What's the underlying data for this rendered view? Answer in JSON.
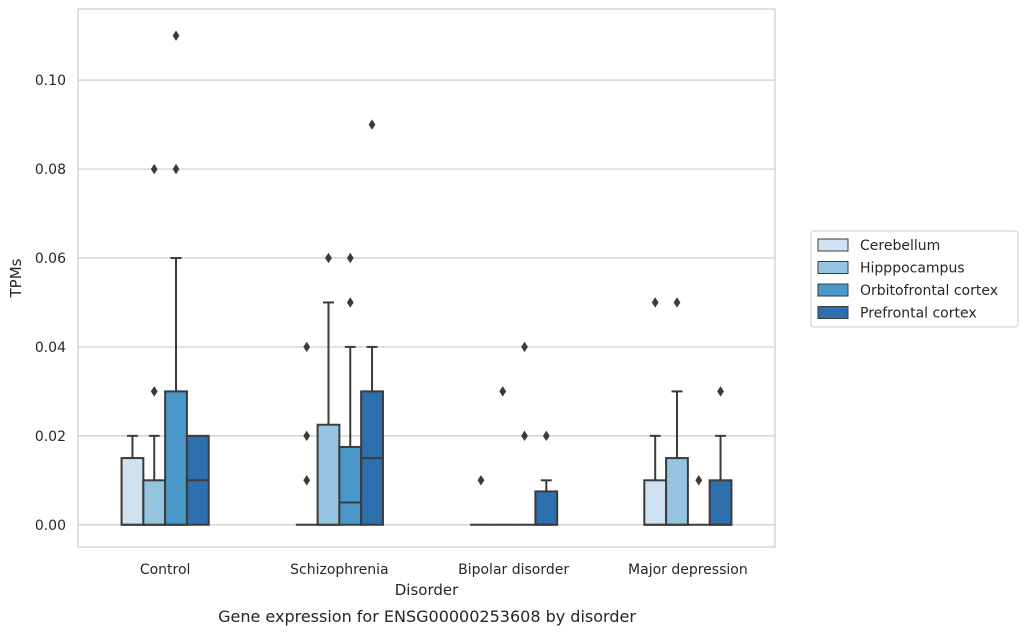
{
  "caption": "Gene expression for ENSG00000253608 by disorder",
  "chart_data": {
    "type": "box",
    "title": "",
    "xlabel": "Disorder",
    "ylabel": "TPMs",
    "ylim": [
      -0.005,
      0.116
    ],
    "yticks": [
      0.0,
      0.02,
      0.04,
      0.06,
      0.08,
      0.1
    ],
    "ytick_labels": [
      "0.00",
      "0.02",
      "0.04",
      "0.06",
      "0.08",
      "0.10"
    ],
    "grid": true,
    "legend_position": "right",
    "categories": [
      "Control",
      "Schizophrenia",
      "Bipolar disorder",
      "Major depression"
    ],
    "series": [
      {
        "name": "Cerebellum",
        "color": "#d0e1f2",
        "boxes": [
          {
            "min": 0.0,
            "q1": 0.0,
            "median": 0.0,
            "q3": 0.015,
            "max": 0.02,
            "outliers": []
          },
          {
            "min": 0.0,
            "q1": 0.0,
            "median": 0.0,
            "q3": 0.0,
            "max": 0.0,
            "outliers": [
              0.01,
              0.02,
              0.04
            ]
          },
          {
            "min": 0.0,
            "q1": 0.0,
            "median": 0.0,
            "q3": 0.0,
            "max": 0.0,
            "outliers": [
              0.01
            ]
          },
          {
            "min": 0.0,
            "q1": 0.0,
            "median": 0.0,
            "q3": 0.01,
            "max": 0.02,
            "outliers": [
              0.05
            ]
          }
        ]
      },
      {
        "name": "Hipppocampus",
        "color": "#94c4df",
        "boxes": [
          {
            "min": 0.0,
            "q1": 0.0,
            "median": 0.0,
            "q3": 0.01,
            "max": 0.02,
            "outliers": [
              0.03,
              0.08
            ]
          },
          {
            "min": 0.0,
            "q1": 0.0,
            "median": 0.0,
            "q3": 0.0225,
            "max": 0.05,
            "outliers": [
              0.06
            ]
          },
          {
            "min": 0.0,
            "q1": 0.0,
            "median": 0.0,
            "q3": 0.0,
            "max": 0.0,
            "outliers": [
              0.03
            ]
          },
          {
            "min": 0.0,
            "q1": 0.0,
            "median": 0.0,
            "q3": 0.015,
            "max": 0.03,
            "outliers": [
              0.05
            ]
          }
        ]
      },
      {
        "name": "Orbitofrontal cortex",
        "color": "#4a98c9",
        "boxes": [
          {
            "min": 0.0,
            "q1": 0.0,
            "median": 0.0,
            "q3": 0.03,
            "max": 0.06,
            "outliers": [
              0.08,
              0.11
            ]
          },
          {
            "min": 0.0,
            "q1": 0.0,
            "median": 0.005,
            "q3": 0.0175,
            "max": 0.04,
            "outliers": [
              0.05,
              0.06
            ]
          },
          {
            "min": 0.0,
            "q1": 0.0,
            "median": 0.0,
            "q3": 0.0,
            "max": 0.0,
            "outliers": [
              0.02,
              0.04
            ]
          },
          {
            "min": 0.0,
            "q1": 0.0,
            "median": 0.0,
            "q3": 0.0,
            "max": 0.0,
            "outliers": [
              0.01
            ]
          }
        ]
      },
      {
        "name": "Prefrontal cortex",
        "color": "#2e6fae",
        "boxes": [
          {
            "min": 0.0,
            "q1": 0.0,
            "median": 0.01,
            "q3": 0.02,
            "max": 0.02,
            "outliers": []
          },
          {
            "min": 0.0,
            "q1": 0.0,
            "median": 0.015,
            "q3": 0.03,
            "max": 0.04,
            "outliers": [
              0.09
            ]
          },
          {
            "min": 0.0,
            "q1": 0.0,
            "median": 0.0,
            "q3": 0.0075,
            "max": 0.01,
            "outliers": [
              0.02
            ]
          },
          {
            "min": 0.0,
            "q1": 0.0,
            "median": 0.0,
            "q3": 0.01,
            "max": 0.02,
            "outliers": [
              0.03
            ]
          }
        ]
      }
    ]
  }
}
